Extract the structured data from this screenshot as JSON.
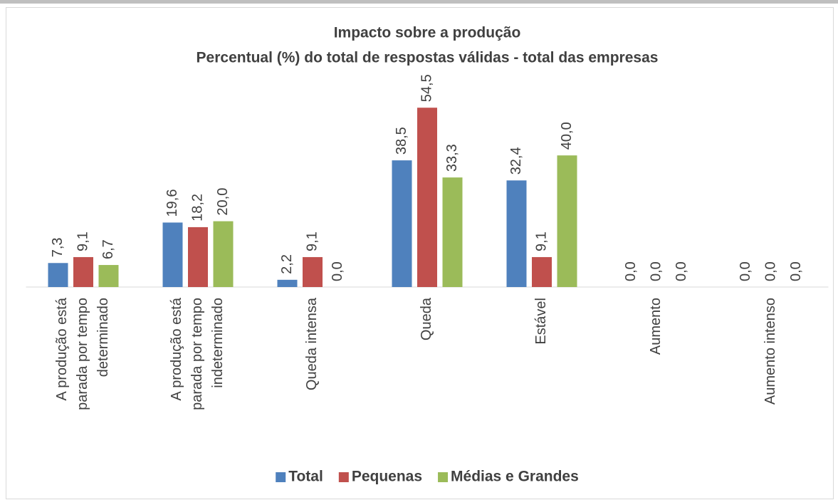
{
  "chart_data": {
    "type": "bar",
    "title": "Impacto sobre a produção",
    "subtitle": "Percentual (%) do total de respostas válidas - total das empresas",
    "categories": [
      "A produção está\nparada por tempo\ndeterminado",
      "A produção está\nparada por tempo\nindeterminado",
      "Queda intensa",
      "Queda",
      "Estável",
      "Aumento",
      "Aumento intenso"
    ],
    "series": [
      {
        "name": "Total",
        "color": "#4f81bd",
        "values": [
          7.3,
          19.6,
          2.2,
          38.5,
          32.4,
          0,
          0
        ],
        "value_labels": [
          "7,3",
          "19,6",
          "2,2",
          "38,5",
          "32,4",
          "0,0",
          "0,0"
        ]
      },
      {
        "name": "Pequenas",
        "color": "#c0504d",
        "values": [
          9.1,
          18.2,
          9.1,
          54.5,
          9.1,
          0,
          0
        ],
        "value_labels": [
          "9,1",
          "18,2",
          "9,1",
          "54,5",
          "9,1",
          "0,0",
          "0,0"
        ]
      },
      {
        "name": "Médias e Grandes",
        "color": "#9bbb59",
        "values": [
          6.7,
          20.0,
          0,
          33.3,
          40.0,
          0,
          0
        ],
        "value_labels": [
          "6,7",
          "20,0",
          "0,0",
          "33,3",
          "40,0",
          "0,0",
          "0,0"
        ]
      }
    ],
    "legend": "bottom"
  }
}
